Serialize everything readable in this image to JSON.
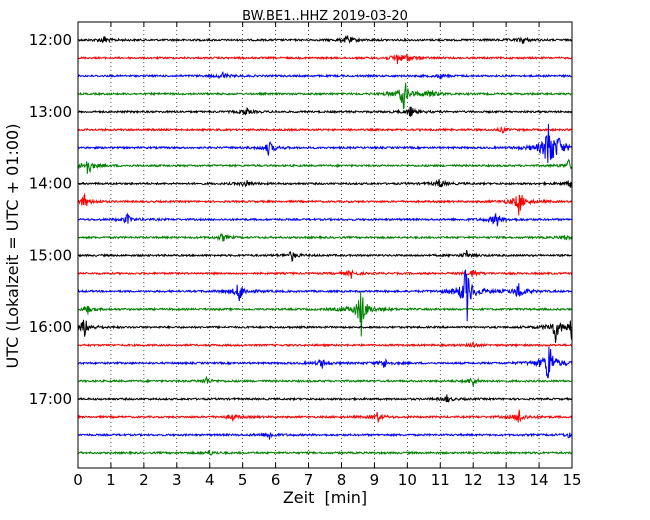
{
  "chart_data": {
    "type": "line",
    "title": "BW.BE1..HHZ 2019-03-20",
    "xlabel": "Zeit  [min]",
    "ylabel": "UTC (Lokalzeit = UTC + 01:00)",
    "xlim": [
      0,
      15
    ],
    "x_ticks": [
      "0",
      "1",
      "2",
      "3",
      "4",
      "5",
      "6",
      "7",
      "8",
      "9",
      "10",
      "11",
      "12",
      "13",
      "14",
      "15"
    ],
    "y_ticks": [
      "12:00",
      "13:00",
      "14:00",
      "15:00",
      "16:00",
      "17:00"
    ],
    "grid": "vertical dotted",
    "trace_colors": [
      "#000000",
      "#ff0000",
      "#0000ff",
      "#008000"
    ],
    "traces": [
      {
        "start": "12:00",
        "events": [
          [
            0.8,
            0.3
          ],
          [
            8.2,
            0.4
          ],
          [
            13.5,
            0.3
          ]
        ]
      },
      {
        "start": "12:15",
        "events": [
          [
            9.7,
            0.4
          ],
          [
            10.0,
            0.3
          ]
        ]
      },
      {
        "start": "12:30",
        "events": [
          [
            4.4,
            0.3
          ],
          [
            11.0,
            0.2
          ]
        ]
      },
      {
        "start": "12:45",
        "events": [
          [
            9.9,
            1.3
          ],
          [
            10.7,
            0.4
          ]
        ]
      },
      {
        "start": "13:00",
        "events": [
          [
            5.1,
            0.3
          ],
          [
            10.1,
            0.4
          ]
        ]
      },
      {
        "start": "13:15",
        "events": [
          [
            12.9,
            0.2
          ]
        ]
      },
      {
        "start": "13:30",
        "events": [
          [
            5.8,
            0.6
          ],
          [
            14.3,
            2.6
          ],
          [
            14.6,
            0.6
          ]
        ]
      },
      {
        "start": "13:45",
        "events": [
          [
            0.3,
            0.8
          ],
          [
            14.9,
            0.4
          ]
        ]
      },
      {
        "start": "14:00",
        "events": [
          [
            5.1,
            0.3
          ],
          [
            11.0,
            0.4
          ],
          [
            15.0,
            0.4
          ]
        ]
      },
      {
        "start": "14:15",
        "events": [
          [
            0.2,
            0.6
          ],
          [
            13.4,
            1.1
          ]
        ]
      },
      {
        "start": "14:30",
        "events": [
          [
            1.5,
            0.4
          ],
          [
            12.7,
            0.7
          ]
        ]
      },
      {
        "start": "14:45",
        "events": [
          [
            4.4,
            0.3
          ],
          [
            14.8,
            0.2
          ]
        ]
      },
      {
        "start": "15:00",
        "events": [
          [
            6.5,
            0.4
          ],
          [
            11.8,
            0.3
          ]
        ]
      },
      {
        "start": "15:15",
        "events": [
          [
            8.3,
            0.3
          ],
          [
            12.0,
            0.3
          ]
        ]
      },
      {
        "start": "15:30",
        "events": [
          [
            4.9,
            0.9
          ],
          [
            11.8,
            2.5
          ],
          [
            13.4,
            0.8
          ]
        ]
      },
      {
        "start": "15:45",
        "events": [
          [
            8.6,
            1.9
          ],
          [
            0.3,
            0.3
          ]
        ]
      },
      {
        "start": "16:00",
        "events": [
          [
            0.2,
            0.8
          ],
          [
            14.5,
            1.0
          ],
          [
            15.0,
            0.9
          ]
        ]
      },
      {
        "start": "16:15",
        "events": [
          [
            12.0,
            0.2
          ]
        ]
      },
      {
        "start": "16:30",
        "events": [
          [
            7.4,
            0.4
          ],
          [
            9.3,
            0.4
          ],
          [
            14.3,
            2.1
          ]
        ]
      },
      {
        "start": "16:45",
        "events": [
          [
            3.9,
            0.3
          ],
          [
            12.0,
            0.4
          ]
        ]
      },
      {
        "start": "17:00",
        "events": [
          [
            11.2,
            0.3
          ]
        ]
      },
      {
        "start": "17:15",
        "events": [
          [
            4.7,
            0.3
          ],
          [
            9.1,
            0.4
          ],
          [
            13.4,
            0.6
          ]
        ]
      },
      {
        "start": "17:30",
        "events": [
          [
            5.8,
            0.4
          ],
          [
            14.9,
            0.2
          ]
        ]
      },
      {
        "start": "17:45",
        "events": [
          [
            4.0,
            0.2
          ]
        ]
      }
    ]
  }
}
